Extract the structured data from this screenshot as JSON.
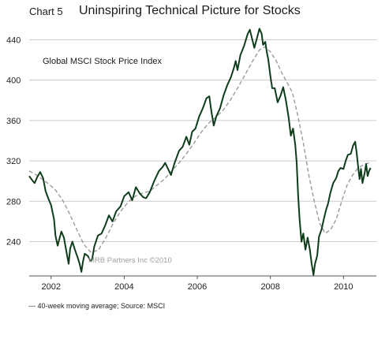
{
  "header": {
    "chart_label": "Chart 5",
    "title": "Uninspiring Technical Picture for Stocks"
  },
  "footnote": "--- 40-week moving average; Source: MSCI",
  "colors": {
    "index_line": "#0f3d1c",
    "moving_average_line": "#9a9a9a",
    "grid": "#cccccc",
    "axis": "#555555"
  },
  "chart_data": {
    "type": "line",
    "title": "Uninspiring Technical Picture for Stocks",
    "series_label_in_plot": "Global MSCI Stock Price Index",
    "watermark": "MRB Partners Inc ©2010",
    "xlim": [
      2001.4,
      2010.9
    ],
    "ylim": [
      206,
      456
    ],
    "yticks": [
      240,
      280,
      320,
      360,
      400,
      440
    ],
    "xticks": [
      2002,
      2004,
      2006,
      2008,
      2010
    ],
    "grid": "horizontal",
    "series": [
      {
        "name": "Global MSCI Stock Price Index",
        "style": "solid",
        "points": [
          [
            2001.4,
            305
          ],
          [
            2001.5,
            300
          ],
          [
            2001.55,
            298
          ],
          [
            2001.62,
            304
          ],
          [
            2001.7,
            309
          ],
          [
            2001.78,
            303
          ],
          [
            2001.85,
            290
          ],
          [
            2001.92,
            283
          ],
          [
            2002.0,
            276
          ],
          [
            2002.08,
            262
          ],
          [
            2002.12,
            246
          ],
          [
            2002.18,
            236
          ],
          [
            2002.22,
            242
          ],
          [
            2002.28,
            250
          ],
          [
            2002.35,
            244
          ],
          [
            2002.42,
            230
          ],
          [
            2002.48,
            218
          ],
          [
            2002.52,
            233
          ],
          [
            2002.58,
            240
          ],
          [
            2002.65,
            232
          ],
          [
            2002.72,
            225
          ],
          [
            2002.78,
            218
          ],
          [
            2002.83,
            210
          ],
          [
            2002.87,
            220
          ],
          [
            2002.92,
            228
          ],
          [
            2003.0,
            226
          ],
          [
            2003.08,
            221
          ],
          [
            2003.12,
            222
          ],
          [
            2003.18,
            235
          ],
          [
            2003.28,
            246
          ],
          [
            2003.38,
            248
          ],
          [
            2003.48,
            256
          ],
          [
            2003.58,
            266
          ],
          [
            2003.68,
            260
          ],
          [
            2003.78,
            270
          ],
          [
            2003.9,
            275
          ],
          [
            2004.0,
            285
          ],
          [
            2004.12,
            289
          ],
          [
            2004.22,
            281
          ],
          [
            2004.32,
            294
          ],
          [
            2004.42,
            288
          ],
          [
            2004.52,
            284
          ],
          [
            2004.6,
            283
          ],
          [
            2004.7,
            289
          ],
          [
            2004.82,
            300
          ],
          [
            2004.95,
            310
          ],
          [
            2005.05,
            314
          ],
          [
            2005.12,
            318
          ],
          [
            2005.2,
            312
          ],
          [
            2005.28,
            306
          ],
          [
            2005.38,
            318
          ],
          [
            2005.5,
            330
          ],
          [
            2005.6,
            334
          ],
          [
            2005.7,
            344
          ],
          [
            2005.78,
            336
          ],
          [
            2005.86,
            349
          ],
          [
            2005.95,
            352
          ],
          [
            2006.05,
            364
          ],
          [
            2006.15,
            372
          ],
          [
            2006.25,
            382
          ],
          [
            2006.33,
            384
          ],
          [
            2006.38,
            370
          ],
          [
            2006.45,
            355
          ],
          [
            2006.52,
            364
          ],
          [
            2006.62,
            372
          ],
          [
            2006.72,
            385
          ],
          [
            2006.82,
            395
          ],
          [
            2006.92,
            403
          ],
          [
            2007.0,
            412
          ],
          [
            2007.05,
            419
          ],
          [
            2007.1,
            410
          ],
          [
            2007.18,
            425
          ],
          [
            2007.28,
            434
          ],
          [
            2007.38,
            446
          ],
          [
            2007.44,
            450
          ],
          [
            2007.5,
            441
          ],
          [
            2007.56,
            432
          ],
          [
            2007.62,
            440
          ],
          [
            2007.7,
            451
          ],
          [
            2007.76,
            446
          ],
          [
            2007.8,
            435
          ],
          [
            2007.86,
            438
          ],
          [
            2007.9,
            428
          ],
          [
            2007.94,
            421
          ],
          [
            2008.0,
            404
          ],
          [
            2008.05,
            392
          ],
          [
            2008.12,
            392
          ],
          [
            2008.2,
            378
          ],
          [
            2008.28,
            385
          ],
          [
            2008.35,
            393
          ],
          [
            2008.42,
            381
          ],
          [
            2008.5,
            363
          ],
          [
            2008.56,
            345
          ],
          [
            2008.62,
            352
          ],
          [
            2008.68,
            336
          ],
          [
            2008.72,
            318
          ],
          [
            2008.76,
            285
          ],
          [
            2008.8,
            262
          ],
          [
            2008.85,
            240
          ],
          [
            2008.9,
            248
          ],
          [
            2008.96,
            232
          ],
          [
            2009.02,
            244
          ],
          [
            2009.08,
            232
          ],
          [
            2009.13,
            218
          ],
          [
            2009.18,
            207
          ],
          [
            2009.22,
            218
          ],
          [
            2009.28,
            226
          ],
          [
            2009.33,
            245
          ],
          [
            2009.4,
            252
          ],
          [
            2009.46,
            262
          ],
          [
            2009.52,
            271
          ],
          [
            2009.58,
            278
          ],
          [
            2009.64,
            288
          ],
          [
            2009.72,
            298
          ],
          [
            2009.8,
            303
          ],
          [
            2009.86,
            310
          ],
          [
            2009.92,
            313
          ],
          [
            2010.0,
            312
          ],
          [
            2010.06,
            320
          ],
          [
            2010.12,
            326
          ],
          [
            2010.2,
            327
          ],
          [
            2010.26,
            335
          ],
          [
            2010.32,
            339
          ],
          [
            2010.36,
            328
          ],
          [
            2010.4,
            315
          ],
          [
            2010.44,
            302
          ],
          [
            2010.48,
            312
          ],
          [
            2010.52,
            298
          ],
          [
            2010.58,
            308
          ],
          [
            2010.62,
            317
          ],
          [
            2010.66,
            305
          ],
          [
            2010.7,
            310
          ],
          [
            2010.74,
            313
          ]
        ]
      },
      {
        "name": "40-week moving average",
        "style": "dashed",
        "points": [
          [
            2001.4,
            310
          ],
          [
            2001.6,
            306
          ],
          [
            2001.9,
            298
          ],
          [
            2002.1,
            292
          ],
          [
            2002.3,
            282
          ],
          [
            2002.5,
            268
          ],
          [
            2002.7,
            252
          ],
          [
            2002.9,
            237
          ],
          [
            2003.1,
            229
          ],
          [
            2003.3,
            232
          ],
          [
            2003.5,
            244
          ],
          [
            2003.7,
            258
          ],
          [
            2003.9,
            270
          ],
          [
            2004.1,
            279
          ],
          [
            2004.3,
            285
          ],
          [
            2004.5,
            288
          ],
          [
            2004.7,
            290
          ],
          [
            2004.9,
            296
          ],
          [
            2005.1,
            302
          ],
          [
            2005.3,
            310
          ],
          [
            2005.5,
            318
          ],
          [
            2005.7,
            327
          ],
          [
            2005.9,
            337
          ],
          [
            2006.1,
            348
          ],
          [
            2006.3,
            357
          ],
          [
            2006.5,
            363
          ],
          [
            2006.7,
            370
          ],
          [
            2006.9,
            380
          ],
          [
            2007.1,
            392
          ],
          [
            2007.3,
            405
          ],
          [
            2007.5,
            418
          ],
          [
            2007.7,
            430
          ],
          [
            2007.85,
            433
          ],
          [
            2008.0,
            428
          ],
          [
            2008.15,
            420
          ],
          [
            2008.3,
            408
          ],
          [
            2008.45,
            398
          ],
          [
            2008.6,
            388
          ],
          [
            2008.75,
            365
          ],
          [
            2008.9,
            338
          ],
          [
            2009.05,
            306
          ],
          [
            2009.2,
            280
          ],
          [
            2009.35,
            258
          ],
          [
            2009.5,
            248
          ],
          [
            2009.65,
            252
          ],
          [
            2009.8,
            262
          ],
          [
            2009.95,
            280
          ],
          [
            2010.1,
            296
          ],
          [
            2010.25,
            306
          ],
          [
            2010.4,
            313
          ],
          [
            2010.55,
            316
          ],
          [
            2010.7,
            318
          ],
          [
            2010.74,
            318
          ]
        ]
      }
    ]
  }
}
